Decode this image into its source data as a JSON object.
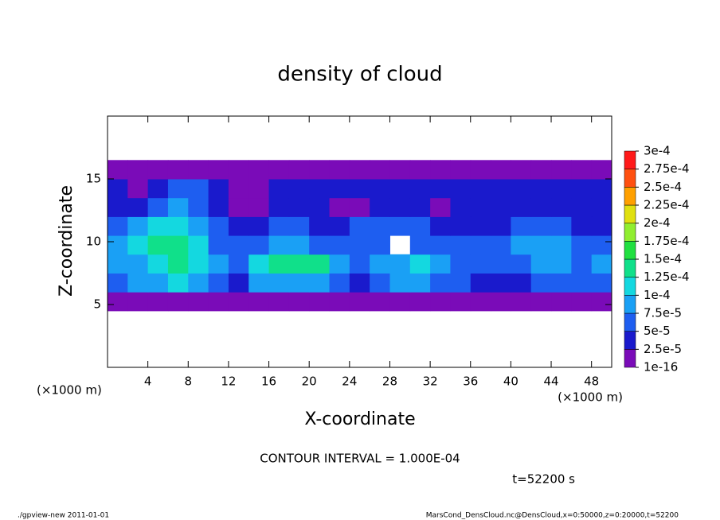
{
  "chart_data": {
    "type": "heatmap",
    "title": "density of cloud",
    "x_label": "X-coordinate",
    "y_label": "Z-coordinate",
    "x_unit": "(×1000 m)",
    "y_unit": "(×1000 m)",
    "contour_note": "CONTOUR INTERVAL = 1.000E-04",
    "time_note": "t=52200 s",
    "footer_left": "./gpview-new  2011-01-01",
    "footer_right": "MarsCond_DensCloud.nc@DensCloud,x=0:50000,z=0:20000,t=52200",
    "xlim": [
      0,
      50
    ],
    "ylim": [
      0,
      20
    ],
    "xticks": [
      4,
      8,
      12,
      16,
      20,
      24,
      28,
      32,
      36,
      40,
      44,
      48
    ],
    "yticks": [
      5,
      10,
      15
    ],
    "x": [
      0,
      2,
      4,
      6,
      8,
      10,
      12,
      14,
      16,
      18,
      20,
      22,
      24,
      26,
      28,
      30,
      32,
      34,
      36,
      38,
      40,
      42,
      44,
      46,
      48,
      50
    ],
    "z": [
      4.5,
      6,
      7.5,
      9,
      10.5,
      12,
      13.5,
      15,
      16.5
    ],
    "values": [
      [
        1e-05,
        1e-05,
        1e-05,
        1e-05,
        1e-05,
        1e-05,
        1e-05,
        1e-05,
        1e-05,
        1e-05,
        1e-05,
        1e-05,
        1e-05,
        1e-05,
        1e-05,
        1e-05,
        1e-05,
        1e-05,
        1e-05,
        1e-05,
        1e-05,
        1e-05,
        1e-05,
        1e-05,
        1e-05
      ],
      [
        6e-05,
        8.5e-05,
        8.5e-05,
        0.00011,
        8.5e-05,
        6e-05,
        3e-05,
        8.5e-05,
        8.5e-05,
        8.5e-05,
        8.5e-05,
        6e-05,
        3e-05,
        6e-05,
        8.5e-05,
        8.5e-05,
        6e-05,
        6e-05,
        3e-05,
        3e-05,
        3e-05,
        6e-05,
        6e-05,
        6e-05,
        6e-05
      ],
      [
        8.5e-05,
        8.5e-05,
        0.00011,
        0.000135,
        0.00011,
        8.5e-05,
        6e-05,
        0.00011,
        0.000135,
        0.000135,
        0.000135,
        8.5e-05,
        6e-05,
        8.5e-05,
        8.5e-05,
        0.00011,
        8.5e-05,
        6e-05,
        6e-05,
        6e-05,
        6e-05,
        8.5e-05,
        8.5e-05,
        6e-05,
        8.5e-05
      ],
      [
        8.5e-05,
        0.00011,
        0.000135,
        0.000135,
        0.00011,
        6e-05,
        6e-05,
        6e-05,
        8.5e-05,
        8.5e-05,
        6e-05,
        6e-05,
        6e-05,
        6e-05,
        null,
        6e-05,
        6e-05,
        6e-05,
        6e-05,
        6e-05,
        8.5e-05,
        8.5e-05,
        8.5e-05,
        6e-05,
        6e-05
      ],
      [
        6e-05,
        8.5e-05,
        0.00011,
        0.00011,
        8.5e-05,
        6e-05,
        3e-05,
        3e-05,
        6e-05,
        6e-05,
        3e-05,
        3e-05,
        6e-05,
        6e-05,
        6e-05,
        6e-05,
        3e-05,
        3e-05,
        3e-05,
        3e-05,
        6e-05,
        6e-05,
        6e-05,
        3e-05,
        3e-05
      ],
      [
        3e-05,
        3e-05,
        6e-05,
        8.5e-05,
        6e-05,
        3e-05,
        1e-05,
        1e-05,
        3e-05,
        3e-05,
        3e-05,
        1e-05,
        1e-05,
        3e-05,
        3e-05,
        3e-05,
        1e-05,
        3e-05,
        3e-05,
        3e-05,
        3e-05,
        3e-05,
        3e-05,
        3e-05,
        3e-05
      ],
      [
        3e-05,
        1e-05,
        3e-05,
        6e-05,
        6e-05,
        3e-05,
        1e-05,
        1e-05,
        3e-05,
        3e-05,
        3e-05,
        3e-05,
        3e-05,
        3e-05,
        3e-05,
        3e-05,
        3e-05,
        3e-05,
        3e-05,
        3e-05,
        3e-05,
        3e-05,
        3e-05,
        3e-05,
        3e-05
      ],
      [
        1e-05,
        1e-05,
        1e-05,
        1e-05,
        1e-05,
        1e-05,
        1e-05,
        1e-05,
        1e-05,
        1e-05,
        1e-05,
        1e-05,
        1e-05,
        1e-05,
        1e-05,
        1e-05,
        1e-05,
        1e-05,
        1e-05,
        1e-05,
        1e-05,
        1e-05,
        1e-05,
        1e-05,
        1e-05
      ]
    ],
    "colorbar": {
      "ticks": [
        {
          "value": 1e-16,
          "label": "1e-16"
        },
        {
          "value": 2.5e-05,
          "label": "2.5e-5"
        },
        {
          "value": 5e-05,
          "label": "5e-5"
        },
        {
          "value": 7.5e-05,
          "label": "7.5e-5"
        },
        {
          "value": 0.0001,
          "label": "1e-4"
        },
        {
          "value": 0.000125,
          "label": "1.25e-4"
        },
        {
          "value": 0.00015,
          "label": "1.5e-4"
        },
        {
          "value": 0.000175,
          "label": "1.75e-4"
        },
        {
          "value": 0.0002,
          "label": "2e-4"
        },
        {
          "value": 0.000225,
          "label": "2.25e-4"
        },
        {
          "value": 0.00025,
          "label": "2.5e-4"
        },
        {
          "value": 0.000275,
          "label": "2.75e-4"
        },
        {
          "value": 0.0003,
          "label": "3e-4"
        }
      ],
      "colors": [
        "#7a0bb8",
        "#1a1acc",
        "#1e5ef0",
        "#1aa0f5",
        "#14d8e0",
        "#10e08a",
        "#20e040",
        "#90ee30",
        "#e0e010",
        "#ffa000",
        "#ff5010",
        "#ff1a1a"
      ]
    }
  }
}
